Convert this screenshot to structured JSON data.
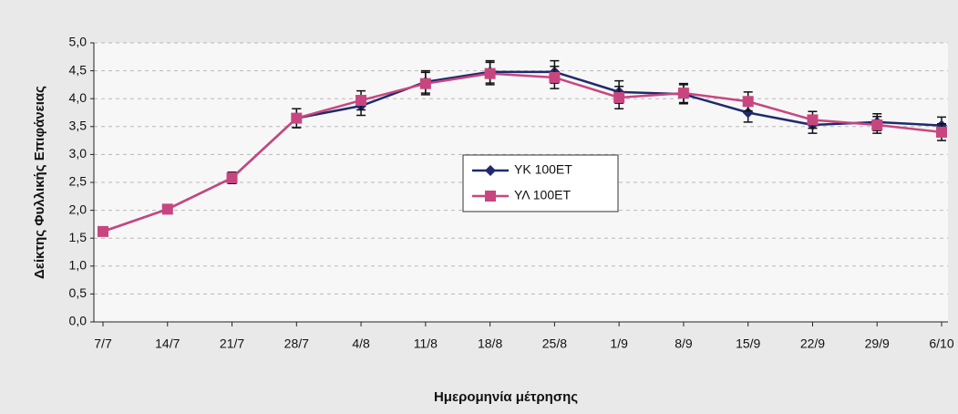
{
  "chart_data": {
    "type": "line",
    "x_label": "Ημερομηνία μέτρησης",
    "y_label": "Δείκτης Φυλλικής Επιφάνειας",
    "categories": [
      "7/7",
      "14/7",
      "21/7",
      "28/7",
      "4/8",
      "11/8",
      "18/8",
      "25/8",
      "1/9",
      "8/9",
      "15/9",
      "22/9",
      "29/9",
      "6/10"
    ],
    "series": [
      {
        "name": "ΥΚ 100ΕΤ",
        "color": "#1f2a6e",
        "marker": "diamond",
        "values": [
          1.62,
          2.02,
          2.58,
          3.65,
          3.87,
          4.3,
          4.48,
          4.48,
          4.12,
          4.08,
          3.75,
          3.53,
          3.58,
          3.52
        ],
        "errors": [
          0.07,
          0.07,
          0.1,
          0.17,
          0.17,
          0.2,
          0.2,
          0.2,
          0.2,
          0.17,
          0.17,
          0.15,
          0.15,
          0.15
        ]
      },
      {
        "name": "ΥΛ 100ΕΤ",
        "color": "#c8467f",
        "marker": "square",
        "values": [
          1.62,
          2.02,
          2.58,
          3.65,
          3.97,
          4.27,
          4.45,
          4.38,
          4.02,
          4.1,
          3.95,
          3.62,
          3.53,
          3.4
        ],
        "errors": [
          0.07,
          0.07,
          0.1,
          0.17,
          0.17,
          0.2,
          0.2,
          0.2,
          0.2,
          0.17,
          0.17,
          0.15,
          0.15,
          0.15
        ]
      }
    ],
    "ylim": [
      0,
      5
    ],
    "yticks": [
      {
        "value": 0,
        "label": "0,0"
      },
      {
        "value": 0.5,
        "label": "0,5"
      },
      {
        "value": 1,
        "label": "1,0"
      },
      {
        "value": 1.5,
        "label": "1,5"
      },
      {
        "value": 2,
        "label": "2,0"
      },
      {
        "value": 2.5,
        "label": "2,5"
      },
      {
        "value": 3,
        "label": "3,0"
      },
      {
        "value": 3.5,
        "label": "3,5"
      },
      {
        "value": 4,
        "label": "4,0"
      },
      {
        "value": 4.5,
        "label": "4,5"
      },
      {
        "value": 5,
        "label": "5,0"
      }
    ],
    "grid": true
  }
}
